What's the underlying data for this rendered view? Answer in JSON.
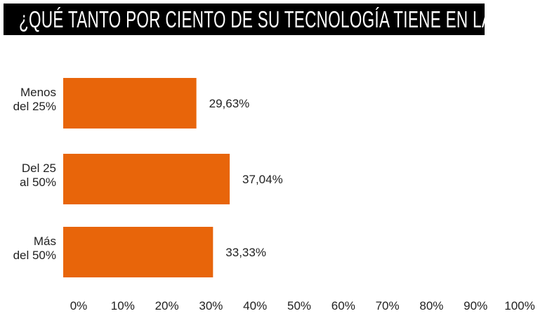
{
  "chart_data": {
    "type": "bar",
    "orientation": "horizontal",
    "title": "¿QUÉ TANTO POR CIENTO DE SU TECNOLOGÍA TIENE EN LA NUBE?",
    "categories": [
      [
        "Menos",
        "del 25%"
      ],
      [
        "Del 25",
        "al 50%"
      ],
      [
        "Más",
        "del 50%"
      ]
    ],
    "values": [
      29.63,
      37.04,
      33.33
    ],
    "value_labels": [
      "29,63%",
      "37,04%",
      "33,33%"
    ],
    "xlim": [
      0,
      100
    ],
    "x_ticks": [
      "0%",
      "10%",
      "20%",
      "30%",
      "40%",
      "50%",
      "60%",
      "70%",
      "80%",
      "90%",
      "100%"
    ],
    "xlabel": "",
    "ylabel": "",
    "grid": false,
    "bar_color": "#E8650A"
  }
}
